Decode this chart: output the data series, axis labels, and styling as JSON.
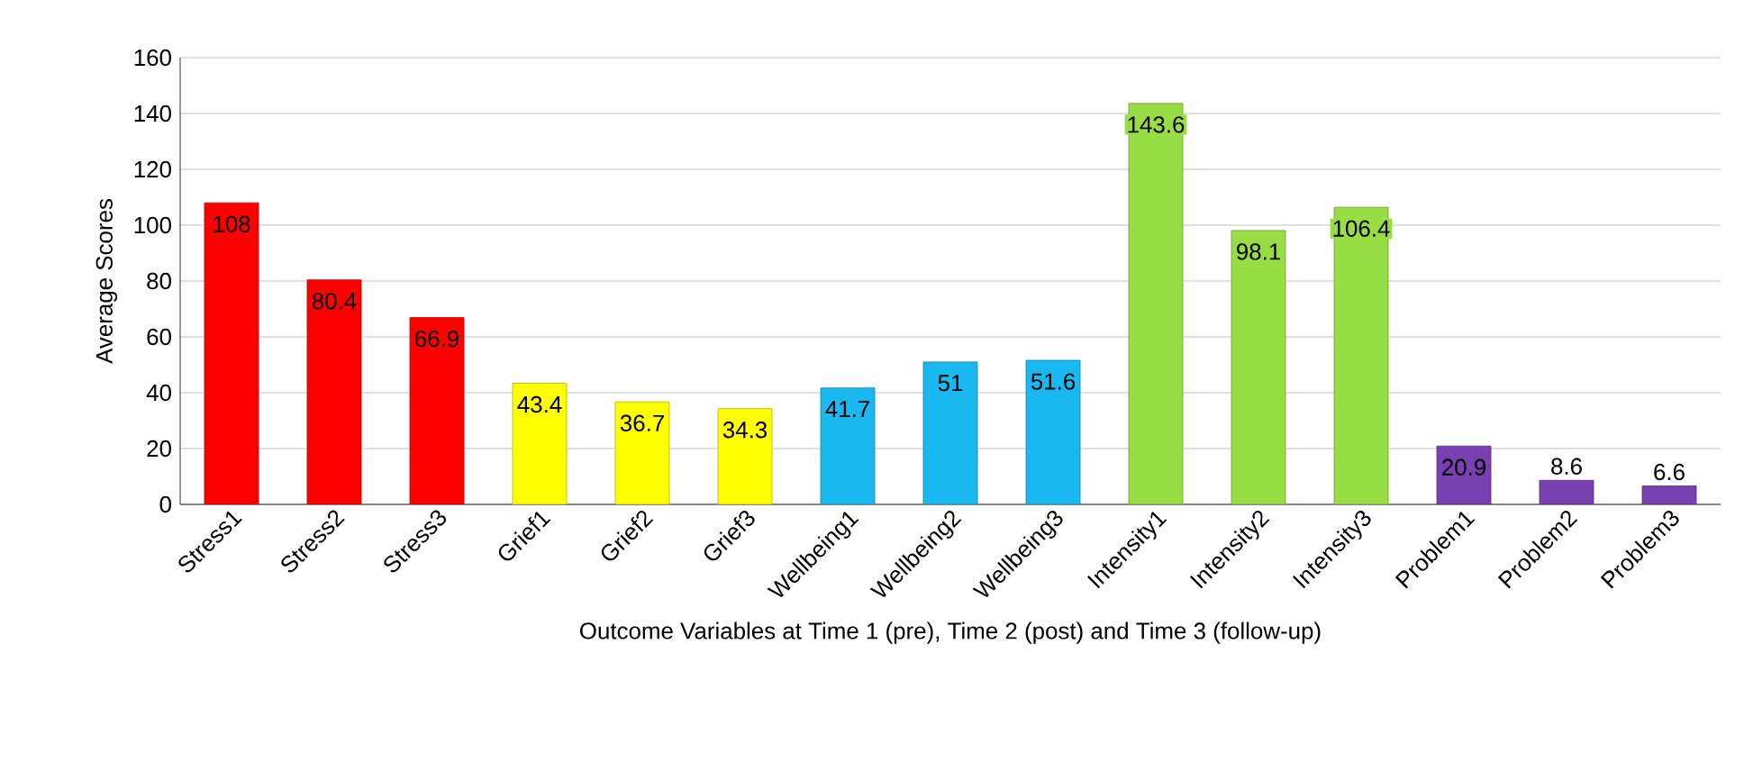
{
  "chart_data": {
    "type": "bar",
    "xlabel": "Outcome Variables at Time 1 (pre), Time 2 (post) and Time 3 (follow-up)",
    "ylabel": "Average Scores",
    "categories": [
      "Stress1",
      "Stress2",
      "Stress3",
      "Grief1",
      "Grief2",
      "Grief3",
      "Wellbeing1",
      "Wellbeing2",
      "Wellbeing3",
      "Intensity1",
      "Intensity2",
      "Intensity3",
      "Problem1",
      "Problem2",
      "Problem3"
    ],
    "values": [
      108,
      80.4,
      66.9,
      43.4,
      36.7,
      34.3,
      41.7,
      51,
      51.6,
      143.6,
      98.1,
      106.4,
      20.9,
      8.6,
      6.6
    ],
    "colors": [
      "#ff0000",
      "#ff0000",
      "#ff0000",
      "#ffff00",
      "#ffff00",
      "#ffff00",
      "#1ab8f0",
      "#1ab8f0",
      "#1ab8f0",
      "#99dd44",
      "#99dd44",
      "#99dd44",
      "#7a3fb0",
      "#7a3fb0",
      "#7a3fb0"
    ],
    "ylim": [
      0,
      160
    ],
    "yticks": [
      0,
      20,
      40,
      60,
      80,
      100,
      120,
      140,
      160
    ],
    "grid": "y",
    "data_labels": true
  }
}
